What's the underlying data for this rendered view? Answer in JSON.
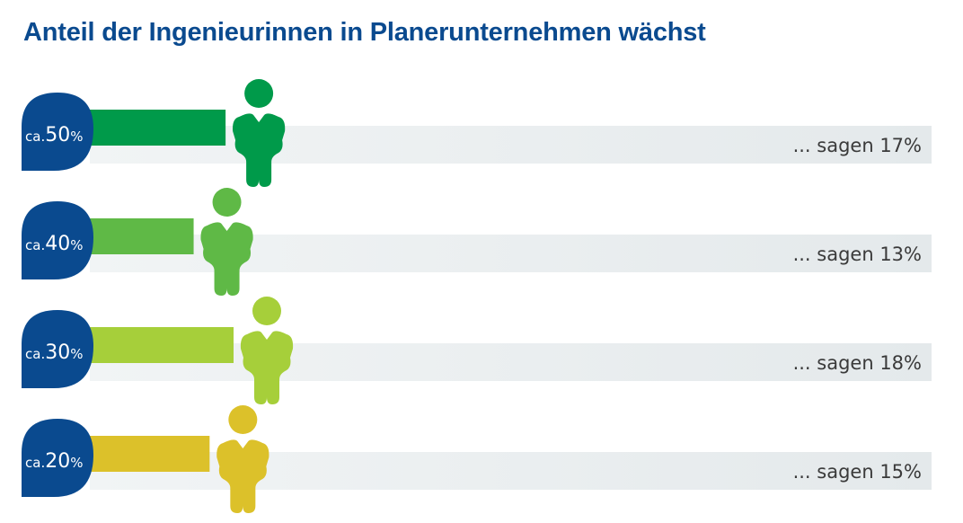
{
  "chart_data": {
    "type": "bar",
    "title": "Anteil der Ingenieurinnen in Planerunternehmen wächst",
    "categories": [
      "ca.50%",
      "ca.40%",
      "ca.30%",
      "ca.20%"
    ],
    "category_parts": [
      {
        "prefix": "ca.",
        "number": "50",
        "suffix": "%"
      },
      {
        "prefix": "ca.",
        "number": "40",
        "suffix": "%"
      },
      {
        "prefix": "ca.",
        "number": "30",
        "suffix": "%"
      },
      {
        "prefix": "ca.",
        "number": "20",
        "suffix": "%"
      }
    ],
    "values": [
      17,
      13,
      18,
      15
    ],
    "labels": [
      "... sagen 17%",
      "... sagen 13%",
      "... sagen 18%",
      "... sagen 15%"
    ],
    "colors": [
      "#009a4a",
      "#5fb946",
      "#a6cf3a",
      "#dcc12a"
    ],
    "bubble_color": "#0a4a8f",
    "track_color": "#e8ecee",
    "xlim": [
      0,
      18
    ]
  }
}
